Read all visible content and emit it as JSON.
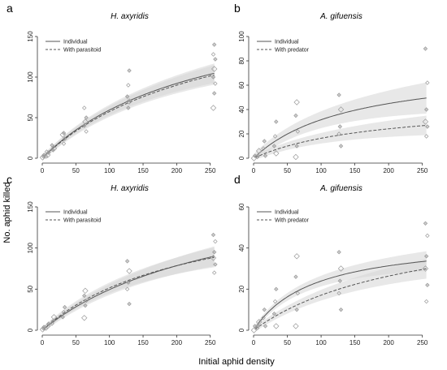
{
  "figure": {
    "ylabel": "No. aphid killed",
    "xlabel": "Initial aphid density"
  },
  "chart_data": [
    {
      "panel": "a",
      "type": "scatter",
      "title": "H. axyridis",
      "xlim": [
        0,
        260
      ],
      "ylim": [
        0,
        150
      ],
      "xticks": [
        0,
        50,
        100,
        150,
        200,
        250
      ],
      "yticks": [
        0,
        50,
        100,
        150
      ],
      "legend_position": "top-left",
      "series": [
        {
          "name": "Individual",
          "style": "solid",
          "curve": {
            "x": [
              2,
              8,
              16,
              32,
              64,
              128,
              256
            ],
            "y": [
              2,
              6,
              11,
              22,
              43,
              72,
              104
            ]
          }
        },
        {
          "name": "With parasitoid",
          "style": "dashed",
          "curve": {
            "x": [
              2,
              8,
              16,
              32,
              64,
              128,
              256
            ],
            "y": [
              2,
              6,
              11,
              21,
              41,
              70,
              102
            ]
          }
        }
      ],
      "points": {
        "x": [
          2,
          2,
          4,
          4,
          8,
          8,
          8,
          16,
          16,
          16,
          32,
          32,
          32,
          32,
          64,
          64,
          64,
          64,
          64,
          128,
          128,
          128,
          128,
          128,
          256,
          256,
          256,
          256,
          256,
          256,
          256,
          256
        ],
        "y": [
          1,
          2,
          2,
          4,
          4,
          7,
          8,
          10,
          12,
          16,
          18,
          24,
          29,
          31,
          33,
          40,
          45,
          50,
          62,
          62,
          70,
          76,
          90,
          108,
          62,
          80,
          92,
          100,
          110,
          122,
          128,
          140
        ]
      }
    },
    {
      "panel": "b",
      "type": "scatter",
      "title": "A. gifuensis",
      "xlim": [
        0,
        260
      ],
      "ylim": [
        0,
        100
      ],
      "xticks": [
        0,
        50,
        100,
        150,
        200,
        250
      ],
      "yticks": [
        0,
        20,
        40,
        60,
        80,
        100
      ],
      "legend_position": "top-left",
      "series": [
        {
          "name": "Individual",
          "style": "solid",
          "curve": {
            "x": [
              2,
              8,
              16,
              32,
              64,
              128,
              256
            ],
            "y": [
              1,
              4,
              8,
              15,
              24,
              35,
              50
            ]
          }
        },
        {
          "name": "With predator",
          "style": "dashed",
          "curve": {
            "x": [
              2,
              8,
              16,
              32,
              64,
              128,
              256
            ],
            "y": [
              0.5,
              2,
              4,
              7,
              12,
              19,
              27
            ]
          }
        }
      ],
      "points": {
        "x": [
          2,
          2,
          4,
          8,
          8,
          16,
          16,
          16,
          32,
          32,
          32,
          32,
          64,
          64,
          64,
          64,
          64,
          128,
          128,
          128,
          128,
          128,
          256,
          256,
          256,
          256,
          256,
          256
        ],
        "y": [
          0,
          2,
          1,
          2,
          6,
          2,
          8,
          14,
          4,
          10,
          18,
          30,
          1,
          10,
          22,
          35,
          46,
          10,
          20,
          26,
          40,
          52,
          18,
          26,
          30,
          40,
          62,
          90
        ]
      }
    },
    {
      "panel": "c",
      "type": "scatter",
      "title": "H. axyridis",
      "xlim": [
        0,
        260
      ],
      "ylim": [
        0,
        150
      ],
      "xticks": [
        0,
        50,
        100,
        150,
        200,
        250
      ],
      "yticks": [
        0,
        50,
        100,
        150
      ],
      "legend_position": "top-left",
      "series": [
        {
          "name": "Individual",
          "style": "solid",
          "curve": {
            "x": [
              2,
              8,
              16,
              32,
              64,
              128,
              256
            ],
            "y": [
              2,
              6,
              10,
              19,
              35,
              59,
              90
            ]
          }
        },
        {
          "name": "With parasitoid",
          "style": "dashed",
          "curve": {
            "x": [
              2,
              8,
              16,
              32,
              64,
              128,
              256
            ],
            "y": [
              2,
              6,
              10,
              20,
              37,
              62,
              88
            ]
          }
        }
      ],
      "points": {
        "x": [
          2,
          2,
          4,
          4,
          8,
          8,
          16,
          16,
          16,
          32,
          32,
          32,
          64,
          64,
          64,
          64,
          64,
          128,
          128,
          128,
          128,
          128,
          256,
          256,
          256,
          256,
          256,
          256
        ],
        "y": [
          1,
          2,
          2,
          4,
          5,
          8,
          8,
          11,
          16,
          16,
          22,
          28,
          15,
          30,
          36,
          42,
          48,
          32,
          50,
          58,
          72,
          84,
          70,
          80,
          88,
          95,
          108,
          116
        ]
      }
    },
    {
      "panel": "d",
      "type": "scatter",
      "title": "A. gifuensis",
      "xlim": [
        0,
        260
      ],
      "ylim": [
        0,
        60
      ],
      "xticks": [
        0,
        50,
        100,
        150,
        200,
        250
      ],
      "yticks": [
        0,
        20,
        40,
        60
      ],
      "legend_position": "top-left",
      "series": [
        {
          "name": "Individual",
          "style": "solid",
          "curve": {
            "x": [
              2,
              8,
              16,
              32,
              64,
              128,
              256
            ],
            "y": [
              1,
              4,
              7,
              12,
              19,
              26,
              34
            ]
          }
        },
        {
          "name": "With predator",
          "style": "dashed",
          "curve": {
            "x": [
              2,
              8,
              16,
              32,
              64,
              128,
              256
            ],
            "y": [
              0.5,
              2,
              4,
              7,
              12,
              20,
              30
            ]
          }
        }
      ],
      "points": {
        "x": [
          2,
          2,
          4,
          8,
          8,
          16,
          16,
          16,
          32,
          32,
          32,
          32,
          64,
          64,
          64,
          64,
          64,
          128,
          128,
          128,
          128,
          128,
          256,
          256,
          256,
          256,
          256,
          256
        ],
        "y": [
          0,
          2,
          1,
          2,
          4,
          2,
          6,
          10,
          2,
          8,
          14,
          20,
          2,
          10,
          18,
          26,
          36,
          10,
          18,
          24,
          30,
          38,
          14,
          22,
          30,
          36,
          46,
          52
        ]
      }
    }
  ],
  "colors": {
    "individual_line": "#555555",
    "dashed_line": "#555555",
    "band": "#d6d6d6",
    "points": "#9a9a9a",
    "axis": "#333333"
  }
}
